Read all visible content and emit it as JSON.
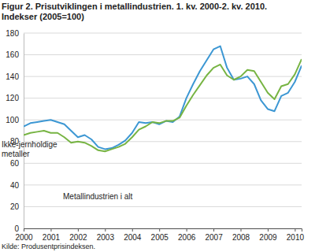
{
  "chart_data": {
    "type": "line",
    "title": "Figur 2. Prisutviklingen i metallindustrien. 1. kv. 2000-2. kv. 2010.",
    "subtitle": "Indekser (2005=100)",
    "source": "Kilde: Produsentprisindeksen.",
    "categories": [
      "2000",
      null,
      null,
      null,
      "2001",
      null,
      null,
      null,
      "2002",
      null,
      null,
      null,
      "2003",
      null,
      null,
      null,
      "2004",
      null,
      null,
      null,
      "2005",
      null,
      null,
      null,
      "2006",
      null,
      null,
      null,
      "2007",
      null,
      null,
      null,
      "2008",
      null,
      null,
      null,
      "2009",
      null,
      null,
      null,
      "2010",
      null
    ],
    "series": [
      {
        "name": "Ikke-jernholdige metaller",
        "color": "#3c97d3",
        "values": [
          94,
          97,
          98,
          99,
          100,
          98,
          96,
          90,
          84,
          86,
          82,
          75,
          73,
          74,
          77,
          81,
          88,
          98,
          97,
          98,
          96,
          99,
          98,
          103,
          120,
          133,
          145,
          155,
          165,
          168,
          148,
          137,
          138,
          140,
          133,
          118,
          110,
          108,
          122,
          125,
          135,
          150
        ]
      },
      {
        "name": "Metallindustrien i alt",
        "color": "#77b443",
        "values": [
          86,
          88,
          89,
          90,
          88,
          88,
          84,
          79,
          80,
          79,
          76,
          72,
          71,
          73,
          75,
          78,
          84,
          91,
          94,
          98,
          97,
          99,
          99,
          102,
          113,
          123,
          132,
          141,
          148,
          151,
          141,
          137,
          140,
          146,
          145,
          135,
          125,
          119,
          131,
          133,
          142,
          156
        ]
      }
    ],
    "ylim": [
      0,
      180
    ],
    "yticks": [
      0,
      20,
      40,
      60,
      80,
      100,
      120,
      140,
      160,
      180
    ],
    "grid": true
  }
}
